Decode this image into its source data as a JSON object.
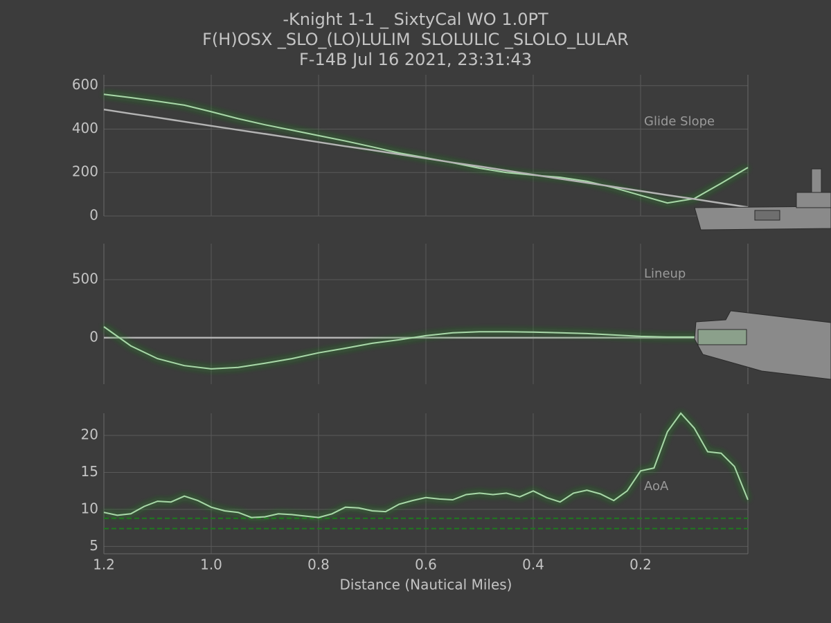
{
  "title": [
    "-Knight 1-1 _ SixtyCal WO 1.0PT",
    "F(H)OSX _SLO_(LO)LULIM  SLOLULIC _SLOLO_LULAR",
    "F-14B Jul 16 2021, 23:31:43"
  ],
  "chart_data": [
    {
      "type": "line",
      "annotation": "Glide Slope",
      "x": [
        1.2,
        1.15,
        1.1,
        1.05,
        1.0,
        0.95,
        0.9,
        0.85,
        0.8,
        0.75,
        0.7,
        0.65,
        0.6,
        0.55,
        0.5,
        0.45,
        0.4,
        0.35,
        0.3,
        0.25,
        0.2,
        0.15,
        0.1,
        0.05,
        0
      ],
      "series": [
        {
          "color": "#a8d8a8",
          "glow": "#2e9a2e",
          "values": [
            560,
            545,
            528,
            510,
            480,
            448,
            420,
            395,
            370,
            345,
            318,
            290,
            268,
            245,
            220,
            200,
            188,
            178,
            160,
            130,
            95,
            60,
            80,
            150,
            223
          ]
        },
        {
          "color": "#b4b4b4",
          "values": [
            490,
            471,
            453,
            434,
            415,
            396,
            378,
            359,
            340,
            321,
            303,
            284,
            265,
            246,
            228,
            209,
            190,
            171,
            153,
            134,
            115,
            96,
            78,
            59,
            40
          ]
        }
      ],
      "xlim": [
        1.2,
        0
      ],
      "xticks": [
        1.2,
        {
          "value": 1,
          "label": "1.0"
        },
        0.8,
        0.6,
        0.4,
        0.2
      ],
      "ylim": [
        0,
        650
      ],
      "yticks": [
        0,
        200,
        400,
        600
      ],
      "grid": true
    },
    {
      "type": "line",
      "annotation": "Lineup",
      "x": [
        1.2,
        1.15,
        1.1,
        1.05,
        1.0,
        0.95,
        0.9,
        0.85,
        0.8,
        0.75,
        0.7,
        0.65,
        0.6,
        0.55,
        0.5,
        0.45,
        0.4,
        0.35,
        0.3,
        0.25,
        0.2,
        0.15,
        0.1,
        0.05,
        0
      ],
      "series": [
        {
          "color": "#b4b4b4",
          "values": [
            0,
            0,
            0,
            0,
            0,
            0,
            0,
            0,
            0,
            0,
            0,
            0,
            0,
            0,
            0,
            0,
            0,
            0,
            0,
            0,
            0,
            0,
            0,
            0,
            0
          ]
        },
        {
          "color": "#a8d8a8",
          "glow": "#2e9a2e",
          "values": [
            95,
            -70,
            -180,
            -240,
            -268,
            -255,
            -220,
            -180,
            -130,
            -90,
            -48,
            -18,
            18,
            42,
            52,
            52,
            48,
            42,
            36,
            24,
            12,
            6,
            6,
            10,
            -45
          ]
        }
      ],
      "xlim": [
        1.2,
        0
      ],
      "xticks": [
        1.2,
        {
          "value": 1,
          "label": "1.0"
        },
        0.8,
        0.6,
        0.4,
        0.2
      ],
      "ylim": [
        -400,
        810
      ],
      "yticks": [
        0,
        500
      ],
      "grid": true
    },
    {
      "type": "line",
      "annotation": "AoA",
      "xlabel": "Distance (Nautical Miles)",
      "x": [
        1.2,
        1.175,
        1.15,
        1.125,
        1.1,
        1.075,
        1.05,
        1.025,
        1.0,
        0.975,
        0.95,
        0.925,
        0.9,
        0.875,
        0.85,
        0.825,
        0.8,
        0.775,
        0.75,
        0.725,
        0.7,
        0.675,
        0.65,
        0.625,
        0.6,
        0.575,
        0.55,
        0.525,
        0.5,
        0.475,
        0.45,
        0.425,
        0.4,
        0.375,
        0.35,
        0.325,
        0.3,
        0.275,
        0.25,
        0.225,
        0.2,
        0.175,
        0.15,
        0.125,
        0.1,
        0.075,
        0.05,
        0.025,
        0
      ],
      "series": [
        {
          "color": "#a8d8a8",
          "glow": "#2e9a2e",
          "values": [
            9.6,
            9.2,
            9.4,
            10.4,
            11.1,
            11.0,
            11.8,
            11.2,
            10.3,
            9.8,
            9.6,
            8.9,
            9.0,
            9.4,
            9.3,
            9.1,
            8.9,
            9.4,
            10.3,
            10.2,
            9.8,
            9.7,
            10.7,
            11.2,
            11.6,
            11.4,
            11.3,
            12.0,
            12.2,
            12.0,
            12.2,
            11.7,
            12.5,
            11.6,
            11.0,
            12.2,
            12.6,
            12.1,
            11.2,
            12.5,
            15.2,
            15.6,
            20.5,
            23,
            21,
            17.8,
            17.6,
            15.8,
            11.3
          ]
        }
      ],
      "hlines": [
        8.8,
        7.4
      ],
      "hline_color": "#1f7a1f",
      "xlim": [
        1.2,
        0
      ],
      "xticks": [
        1.2,
        {
          "value": 1,
          "label": "1.0"
        },
        0.8,
        0.6,
        0.4,
        0.2
      ],
      "ylim": [
        4,
        23
      ],
      "yticks": [
        5,
        10,
        15,
        20
      ],
      "grid": true
    }
  ]
}
